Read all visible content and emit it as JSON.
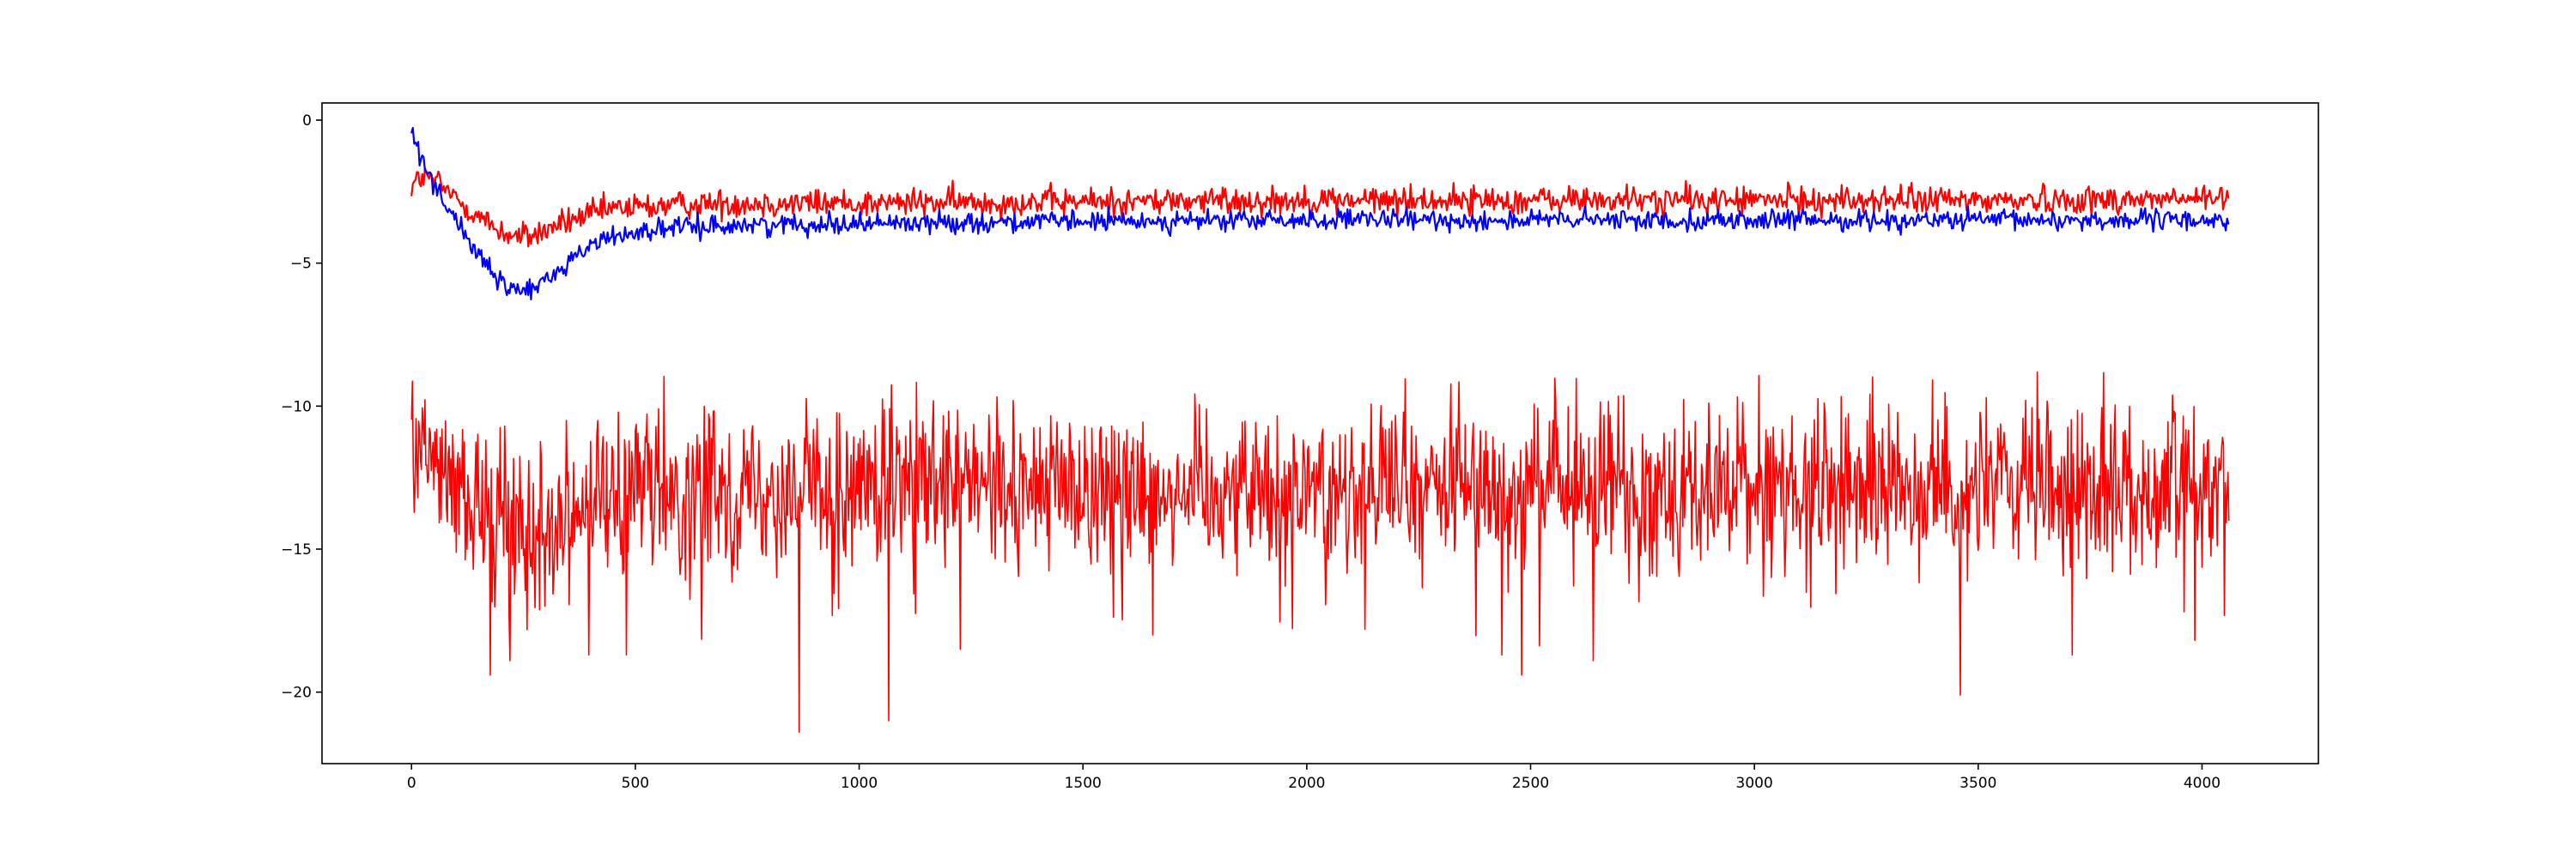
{
  "chart_data": {
    "type": "line",
    "title": "",
    "xlabel": "",
    "ylabel": "",
    "xlim": [
      -200,
      4260
    ],
    "ylim": [
      -22.5,
      0.6
    ],
    "grid": false,
    "legend": "none",
    "x_ticks": [
      {
        "value": 0,
        "label": "0"
      },
      {
        "value": 500,
        "label": "500"
      },
      {
        "value": 1000,
        "label": "1000"
      },
      {
        "value": 1500,
        "label": "1500"
      },
      {
        "value": 2000,
        "label": "2000"
      },
      {
        "value": 2500,
        "label": "2500"
      },
      {
        "value": 3000,
        "label": "3000"
      },
      {
        "value": 3500,
        "label": "3500"
      },
      {
        "value": 4000,
        "label": "4000"
      }
    ],
    "y_ticks": [
      {
        "value": 0,
        "label": "0"
      },
      {
        "value": -5,
        "label": "−5"
      },
      {
        "value": -10,
        "label": "−10"
      },
      {
        "value": -15,
        "label": "−15"
      },
      {
        "value": -20,
        "label": "−20"
      }
    ],
    "series": [
      {
        "color": "#ff0000",
        "noise": 0.25,
        "points": [
          [
            0,
            -2.3
          ],
          [
            20,
            -2.0
          ],
          [
            40,
            -2.05
          ],
          [
            60,
            -2.2
          ],
          [
            80,
            -2.5
          ],
          [
            120,
            -3.0
          ],
          [
            160,
            -3.5
          ],
          [
            200,
            -3.9
          ],
          [
            240,
            -4.1
          ],
          [
            280,
            -4.0
          ],
          [
            320,
            -3.7
          ],
          [
            380,
            -3.4
          ],
          [
            450,
            -3.1
          ],
          [
            550,
            -3.0
          ],
          [
            700,
            -2.9
          ],
          [
            1000,
            -2.9
          ],
          [
            1500,
            -2.85
          ],
          [
            2000,
            -2.8
          ],
          [
            2500,
            -2.8
          ],
          [
            3000,
            -2.8
          ],
          [
            3500,
            -2.8
          ],
          [
            4060,
            -2.75
          ]
        ]
      },
      {
        "color": "#0000ff",
        "noise": 0.18,
        "points": [
          [
            0,
            -0.4
          ],
          [
            20,
            -1.2
          ],
          [
            50,
            -2.2
          ],
          [
            80,
            -3.0
          ],
          [
            120,
            -4.0
          ],
          [
            160,
            -5.0
          ],
          [
            200,
            -5.7
          ],
          [
            230,
            -5.95
          ],
          [
            270,
            -5.9
          ],
          [
            310,
            -5.5
          ],
          [
            360,
            -4.8
          ],
          [
            420,
            -4.2
          ],
          [
            500,
            -3.9
          ],
          [
            600,
            -3.75
          ],
          [
            800,
            -3.65
          ],
          [
            1000,
            -3.6
          ],
          [
            1500,
            -3.55
          ],
          [
            2000,
            -3.5
          ],
          [
            2500,
            -3.5
          ],
          [
            3000,
            -3.5
          ],
          [
            3500,
            -3.5
          ],
          [
            4060,
            -3.5
          ]
        ]
      },
      {
        "color": "#ff0000",
        "noise": 1.4,
        "points": [
          [
            0,
            -11.5
          ],
          [
            30,
            -11.7
          ],
          [
            60,
            -12.2
          ],
          [
            100,
            -13.0
          ],
          [
            150,
            -13.7
          ],
          [
            200,
            -14.0
          ],
          [
            260,
            -14.1
          ],
          [
            320,
            -13.8
          ],
          [
            400,
            -13.3
          ],
          [
            500,
            -13.0
          ],
          [
            700,
            -12.9
          ],
          [
            1000,
            -12.8
          ],
          [
            1500,
            -12.8
          ],
          [
            2000,
            -12.8
          ],
          [
            2500,
            -12.8
          ],
          [
            3000,
            -12.8
          ],
          [
            3500,
            -12.8
          ],
          [
            4060,
            -12.8
          ]
        ],
        "spikes": [
          [
            175,
            -19.4
          ],
          [
            220,
            -18.9
          ],
          [
            395,
            -18.7
          ],
          [
            480,
            -18.7
          ],
          [
            865,
            -21.4
          ],
          [
            1065,
            -21.0
          ],
          [
            1225,
            -18.5
          ],
          [
            1655,
            -18.0
          ],
          [
            2130,
            -17.8
          ],
          [
            2435,
            -18.7
          ],
          [
            2480,
            -19.4
          ],
          [
            2640,
            -18.9
          ],
          [
            3460,
            -20.1
          ],
          [
            3710,
            -18.7
          ]
        ]
      }
    ]
  }
}
